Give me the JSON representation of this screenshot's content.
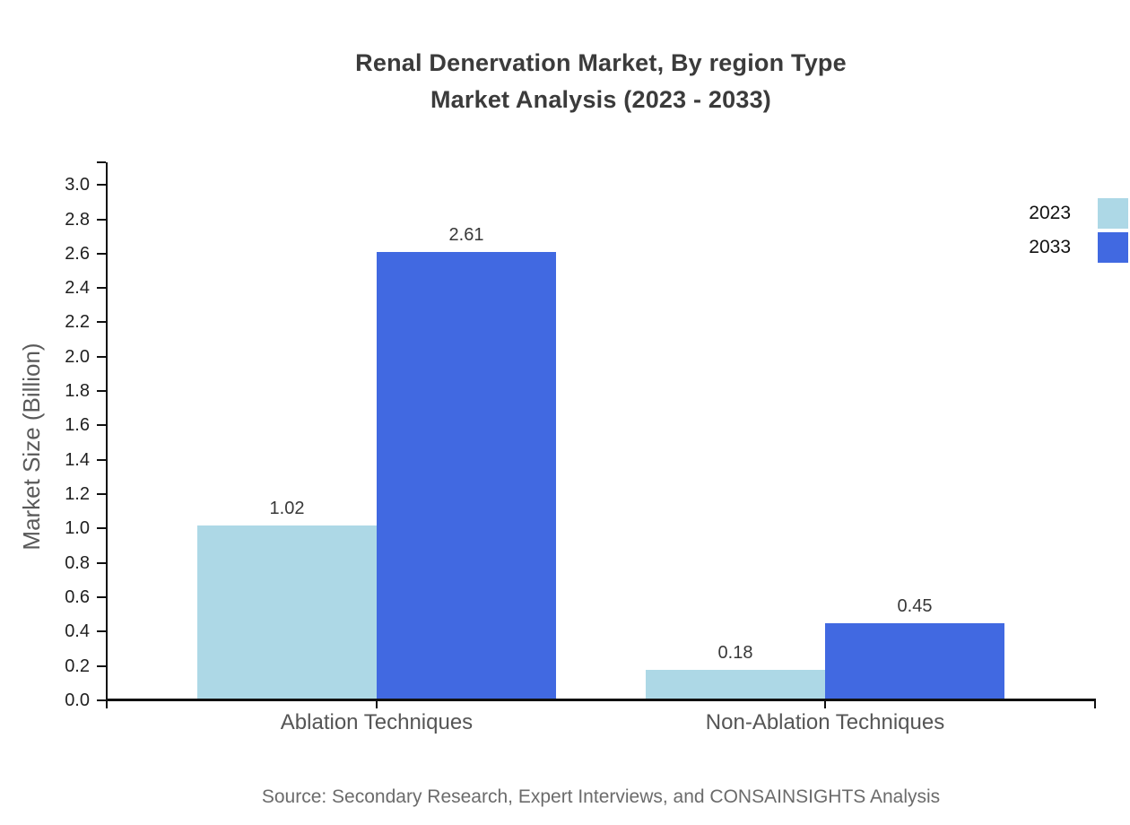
{
  "chart": {
    "source": "Source: Secondary Research, Expert Interviews, and CONSAINSIGHTS Analysis"
  },
  "chart_data": {
    "type": "bar",
    "title": "Renal Denervation Market, By region Type Market Analysis (2023 - 2033)",
    "title_line1": "Renal Denervation Market, By region Type",
    "title_line2": "Market Analysis (2023 - 2033)",
    "categories": [
      "Ablation Techniques",
      "Non-Ablation Techniques"
    ],
    "series": [
      {
        "name": "2023",
        "color": "#ADD8E6",
        "values": [
          1.02,
          0.18
        ]
      },
      {
        "name": "2033",
        "color": "#4169E1",
        "values": [
          2.61,
          0.45
        ]
      }
    ],
    "value_labels": [
      [
        "1.02",
        "0.18"
      ],
      [
        "2.61",
        "0.45"
      ]
    ],
    "xlabel": "",
    "ylabel": "Market Size (Billion)",
    "ylim": [
      0.0,
      3.0
    ],
    "ytick_step": 0.2,
    "yticks": [
      "0.0",
      "0.2",
      "0.4",
      "0.6",
      "0.8",
      "1.0",
      "1.2",
      "1.4",
      "1.6",
      "1.8",
      "2.0",
      "2.2",
      "2.4",
      "2.6",
      "2.8",
      "3.0"
    ],
    "grid": false,
    "legend_position": "top-right"
  }
}
